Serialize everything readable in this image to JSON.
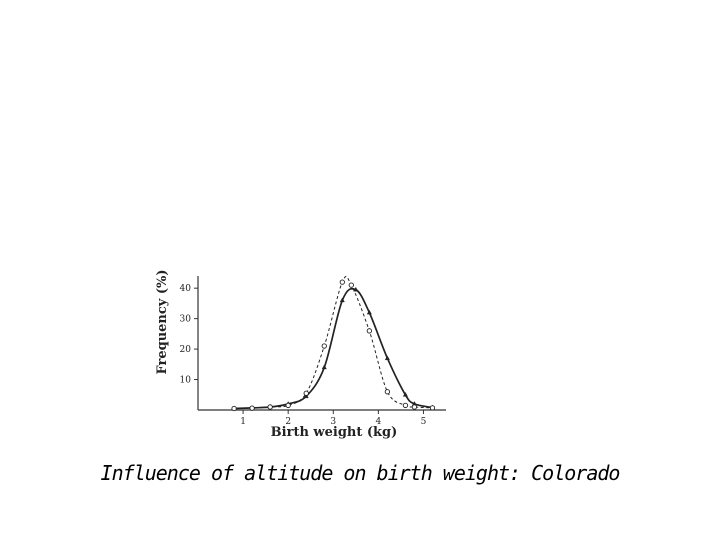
{
  "caption": "Influence of altitude on birth weight:  Colorado",
  "chart_data": {
    "type": "line",
    "title": "",
    "xlabel": "Birth weight (kg)",
    "ylabel": "Frequency (%)",
    "xlim": [
      0,
      5.5
    ],
    "ylim": [
      0,
      44
    ],
    "xticks": [
      "1",
      "2",
      "3",
      "4",
      "5"
    ],
    "yticks": [
      "10",
      "20",
      "30",
      "40"
    ],
    "grid": false,
    "legend": "none",
    "series": [
      {
        "style": "solid",
        "marker": "triangle",
        "points": [
          [
            0.8,
            0.5
          ],
          [
            1.2,
            0.7
          ],
          [
            1.6,
            1.0
          ],
          [
            2.0,
            2.0
          ],
          [
            2.4,
            4.5
          ],
          [
            2.8,
            14.0
          ],
          [
            3.2,
            36.0
          ],
          [
            3.5,
            39.5
          ],
          [
            3.8,
            32.0
          ],
          [
            4.2,
            17.0
          ],
          [
            4.6,
            5.0
          ],
          [
            4.8,
            2.0
          ],
          [
            5.2,
            0.8
          ]
        ]
      },
      {
        "style": "dashed",
        "marker": "circle",
        "points": [
          [
            0.8,
            0.5
          ],
          [
            1.2,
            0.6
          ],
          [
            1.6,
            1.0
          ],
          [
            2.0,
            1.5
          ],
          [
            2.4,
            5.5
          ],
          [
            2.8,
            21.0
          ],
          [
            3.2,
            42.0
          ],
          [
            3.4,
            41.0
          ],
          [
            3.8,
            26.0
          ],
          [
            4.2,
            6.0
          ],
          [
            4.6,
            1.5
          ],
          [
            4.8,
            1.0
          ],
          [
            5.2,
            0.7
          ]
        ]
      }
    ]
  }
}
